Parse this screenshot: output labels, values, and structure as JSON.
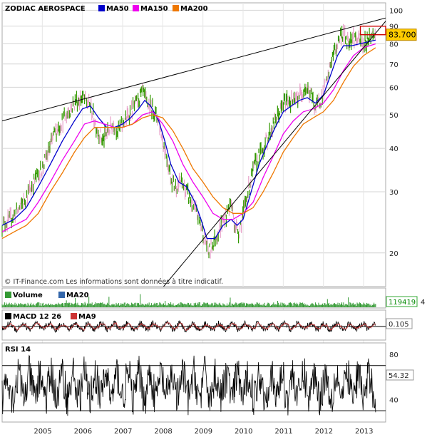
{
  "chart_data": [
    {
      "type": "line",
      "title": "ZODIAC AEROSPACE",
      "legend": [
        {
          "name": "MA50",
          "color": "#0000cc"
        },
        {
          "name": "MA150",
          "color": "#ee00ee"
        },
        {
          "name": "MA200",
          "color": "#ee7700"
        }
      ],
      "y_scale": "log",
      "ylim": [
        16,
        105
      ],
      "y_ticks": [
        20,
        30,
        40,
        50,
        60,
        70,
        80,
        90,
        100
      ],
      "xlim": [
        2004.0,
        2013.55
      ],
      "x_ticks": [
        2005,
        2006,
        2007,
        2008,
        2009,
        2010,
        2011,
        2012,
        2013
      ],
      "last_price_label": "83.700",
      "price_color": "#339900",
      "series": [
        {
          "name": "",
          "values": [
            [
              2004.0,
              24
            ],
            [
              2004.2,
              25
            ],
            [
              2004.45,
              27
            ],
            [
              2004.6,
              29
            ],
            [
              2004.85,
              33
            ],
            [
              2005.0,
              35
            ],
            [
              2005.15,
              39
            ],
            [
              2005.3,
              44
            ],
            [
              2005.5,
              48
            ],
            [
              2005.7,
              52
            ],
            [
              2005.85,
              55
            ],
            [
              2006.0,
              56
            ],
            [
              2006.2,
              53
            ],
            [
              2006.35,
              46
            ],
            [
              2006.5,
              42
            ],
            [
              2006.6,
              44
            ],
            [
              2006.75,
              47
            ],
            [
              2006.9,
              45
            ],
            [
              2007.05,
              48
            ],
            [
              2007.2,
              51
            ],
            [
              2007.35,
              54
            ],
            [
              2007.5,
              58
            ],
            [
              2007.6,
              54
            ],
            [
              2007.75,
              52
            ],
            [
              2007.9,
              48
            ],
            [
              2008.0,
              42
            ],
            [
              2008.1,
              38
            ],
            [
              2008.2,
              33
            ],
            [
              2008.3,
              31
            ],
            [
              2008.45,
              32
            ],
            [
              2008.6,
              30
            ],
            [
              2008.7,
              28
            ],
            [
              2008.85,
              26
            ],
            [
              2009.0,
              23
            ],
            [
              2009.15,
              20
            ],
            [
              2009.3,
              22
            ],
            [
              2009.45,
              24
            ],
            [
              2009.6,
              26
            ],
            [
              2009.7,
              28
            ],
            [
              2009.8,
              24
            ],
            [
              2009.9,
              23
            ],
            [
              2010.0,
              26
            ],
            [
              2010.15,
              31
            ],
            [
              2010.3,
              36
            ],
            [
              2010.5,
              40
            ],
            [
              2010.65,
              44
            ],
            [
              2010.8,
              48
            ],
            [
              2010.95,
              52
            ],
            [
              2011.1,
              56
            ],
            [
              2011.25,
              54
            ],
            [
              2011.4,
              57
            ],
            [
              2011.55,
              60
            ],
            [
              2011.7,
              57
            ],
            [
              2011.8,
              52
            ],
            [
              2011.95,
              56
            ],
            [
              2012.1,
              62
            ],
            [
              2012.2,
              72
            ],
            [
              2012.35,
              80
            ],
            [
              2012.45,
              86
            ],
            [
              2012.6,
              82
            ],
            [
              2012.75,
              84
            ],
            [
              2012.9,
              81
            ],
            [
              2013.0,
              80
            ],
            [
              2013.15,
              84
            ],
            [
              2013.3,
              85
            ]
          ]
        },
        {
          "name": "MA50",
          "values": [
            [
              2004.0,
              24
            ],
            [
              2004.3,
              25
            ],
            [
              2004.6,
              27
            ],
            [
              2004.9,
              31
            ],
            [
              2005.2,
              36
            ],
            [
              2005.5,
              42
            ],
            [
              2005.8,
              48
            ],
            [
              2006.0,
              52
            ],
            [
              2006.2,
              53
            ],
            [
              2006.4,
              49
            ],
            [
              2006.6,
              46
            ],
            [
              2006.8,
              46
            ],
            [
              2007.0,
              47
            ],
            [
              2007.2,
              49
            ],
            [
              2007.4,
              52
            ],
            [
              2007.55,
              55
            ],
            [
              2007.7,
              53
            ],
            [
              2007.9,
              48
            ],
            [
              2008.05,
              42
            ],
            [
              2008.2,
              36
            ],
            [
              2008.4,
              32
            ],
            [
              2008.6,
              31
            ],
            [
              2008.8,
              28
            ],
            [
              2008.95,
              25
            ],
            [
              2009.1,
              22
            ],
            [
              2009.3,
              22
            ],
            [
              2009.5,
              24
            ],
            [
              2009.7,
              25
            ],
            [
              2009.85,
              24
            ],
            [
              2010.0,
              25
            ],
            [
              2010.2,
              30
            ],
            [
              2010.4,
              36
            ],
            [
              2010.6,
              41
            ],
            [
              2010.8,
              46
            ],
            [
              2011.0,
              51
            ],
            [
              2011.2,
              53
            ],
            [
              2011.4,
              55
            ],
            [
              2011.6,
              56
            ],
            [
              2011.8,
              54
            ],
            [
              2012.0,
              57
            ],
            [
              2012.2,
              66
            ],
            [
              2012.35,
              74
            ],
            [
              2012.5,
              79
            ],
            [
              2012.7,
              79
            ],
            [
              2012.9,
              80
            ],
            [
              2013.1,
              81
            ],
            [
              2013.3,
              82
            ]
          ]
        },
        {
          "name": "MA150",
          "values": [
            [
              2004.0,
              23
            ],
            [
              2004.3,
              24
            ],
            [
              2004.6,
              25
            ],
            [
              2004.9,
              28
            ],
            [
              2005.2,
              32
            ],
            [
              2005.5,
              37
            ],
            [
              2005.8,
              42
            ],
            [
              2006.05,
              47
            ],
            [
              2006.3,
              48
            ],
            [
              2006.55,
              47
            ],
            [
              2006.8,
              46
            ],
            [
              2007.0,
              46
            ],
            [
              2007.25,
              47
            ],
            [
              2007.5,
              50
            ],
            [
              2007.75,
              51
            ],
            [
              2008.0,
              47
            ],
            [
              2008.25,
              42
            ],
            [
              2008.5,
              36
            ],
            [
              2008.75,
              32
            ],
            [
              2009.0,
              29
            ],
            [
              2009.25,
              26
            ],
            [
              2009.5,
              25
            ],
            [
              2009.75,
              25
            ],
            [
              2010.0,
              26
            ],
            [
              2010.25,
              28
            ],
            [
              2010.5,
              33
            ],
            [
              2010.75,
              38
            ],
            [
              2011.0,
              44
            ],
            [
              2011.25,
              48
            ],
            [
              2011.5,
              51
            ],
            [
              2011.75,
              52
            ],
            [
              2012.0,
              54
            ],
            [
              2012.25,
              59
            ],
            [
              2012.5,
              67
            ],
            [
              2012.75,
              74
            ],
            [
              2013.0,
              78
            ],
            [
              2013.3,
              80
            ]
          ]
        },
        {
          "name": "MA200",
          "values": [
            [
              2004.0,
              22
            ],
            [
              2004.3,
              23
            ],
            [
              2004.6,
              24
            ],
            [
              2004.9,
              26
            ],
            [
              2005.2,
              30
            ],
            [
              2005.5,
              34
            ],
            [
              2005.8,
              39
            ],
            [
              2006.05,
              43
            ],
            [
              2006.3,
              46
            ],
            [
              2006.55,
              46
            ],
            [
              2006.8,
              46
            ],
            [
              2007.0,
              46
            ],
            [
              2007.25,
              47
            ],
            [
              2007.5,
              49
            ],
            [
              2007.75,
              50
            ],
            [
              2008.0,
              49
            ],
            [
              2008.25,
              45
            ],
            [
              2008.5,
              40
            ],
            [
              2008.75,
              35
            ],
            [
              2009.0,
              32
            ],
            [
              2009.25,
              29
            ],
            [
              2009.5,
              27
            ],
            [
              2009.75,
              26
            ],
            [
              2010.0,
              26
            ],
            [
              2010.25,
              27
            ],
            [
              2010.5,
              30
            ],
            [
              2010.75,
              34
            ],
            [
              2011.0,
              39
            ],
            [
              2011.25,
              43
            ],
            [
              2011.5,
              47
            ],
            [
              2011.75,
              49
            ],
            [
              2012.0,
              51
            ],
            [
              2012.25,
              55
            ],
            [
              2012.5,
              62
            ],
            [
              2012.75,
              69
            ],
            [
              2013.0,
              74
            ],
            [
              2013.3,
              78
            ]
          ]
        }
      ],
      "trendlines": [
        {
          "name": "resistance",
          "values": [
            [
              2004.0,
              48
            ],
            [
              2013.55,
              95
            ]
          ]
        },
        {
          "name": "support",
          "values": [
            [
              2007.6,
              14
            ],
            [
              2013.55,
              93
            ]
          ]
        }
      ],
      "footer": "© IT-Finance.com     Les informations sont données à titre indicatif."
    },
    {
      "type": "bar",
      "title": "Volume",
      "legend": [
        {
          "name": "Volume",
          "color": "#339933"
        },
        {
          "name": "MA20",
          "color": "#3366aa"
        }
      ],
      "last_value_label": "119419",
      "overflow_label": "4"
    },
    {
      "type": "line",
      "title": "MACD 12 26",
      "legend": [
        {
          "name": "MACD 12 26",
          "color": "#000000"
        },
        {
          "name": "MA9",
          "color": "#cc3333"
        }
      ],
      "last_value_label": "0.105"
    },
    {
      "type": "line",
      "title": "RSI 14",
      "ylim": [
        20,
        90
      ],
      "y_ticks": [
        40,
        80
      ],
      "reference_lines": [
        30,
        70
      ],
      "last_value_label": "54.32"
    }
  ]
}
